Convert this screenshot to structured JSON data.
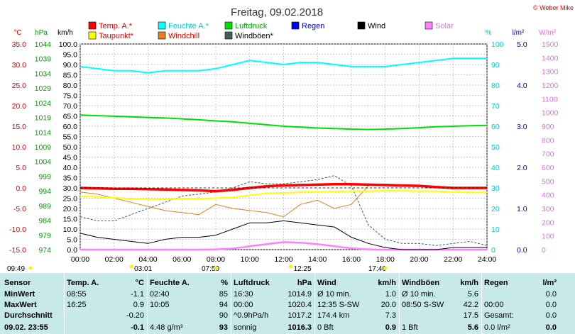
{
  "title": "Freitag, 09.02.2018",
  "copyright": "© Weber Mike",
  "colors": {
    "temp": "#ff0000",
    "feuchte": "#00ffff",
    "luftdruck": "#00e000",
    "regen": "#0000ff",
    "wind": "#000000",
    "solar": "#ff80ff",
    "taupunkt": "#ffff00",
    "windchill": "#e08020",
    "windboeen": "#406060",
    "summary_bg": "#c8e9e9"
  },
  "legend": [
    {
      "key": "temp",
      "label": "Temp. A.*"
    },
    {
      "key": "feuchte",
      "label": "Feuchte A.*"
    },
    {
      "key": "luftdruck",
      "label": "Luftdruck"
    },
    {
      "key": "regen",
      "label": "Regen"
    },
    {
      "key": "wind",
      "label": "Wind"
    },
    {
      "key": "solar",
      "label": "Solar"
    },
    {
      "key": "taupunkt",
      "label": "Taupunkt*"
    },
    {
      "key": "windchill",
      "label": "Windchill"
    },
    {
      "key": "windboeen",
      "label": "Windböen*"
    }
  ],
  "axes": {
    "temp": {
      "unit": "°C",
      "ticks": [
        "35.0",
        "30.0",
        "25.0",
        "20.0",
        "15.0",
        "10.0",
        "5.0",
        "0.0",
        "-5.0",
        "-10.0",
        "-15.0"
      ]
    },
    "pressure": {
      "unit": "hPa",
      "ticks": [
        "1044",
        "1039",
        "1034",
        "1029",
        "1024",
        "1019",
        "1014",
        "1009",
        "1004",
        "999",
        "994",
        "989",
        "984",
        "979",
        "974"
      ]
    },
    "wind": {
      "unit": "km/h",
      "ticks": [
        "100.0",
        "95.0",
        "90.0",
        "85.0",
        "80.0",
        "75.0",
        "70.0",
        "65.0",
        "60.0",
        "55.0",
        "50.0",
        "45.0",
        "40.0",
        "35.0",
        "30.0",
        "25.0",
        "20.0",
        "15.0",
        "10.0",
        "5.0",
        "0.0"
      ]
    },
    "humidity": {
      "unit": "%",
      "ticks": [
        "100",
        "90",
        "80",
        "70",
        "60",
        "50",
        "40",
        "30",
        "20",
        "10",
        "0"
      ]
    },
    "rain": {
      "unit": "l/m²",
      "ticks": [
        "5.0",
        "4.0",
        "3.0",
        "2.0",
        "1.0",
        "0.0"
      ]
    },
    "solar": {
      "unit": "W/m²",
      "ticks": [
        "1500",
        "1400",
        "1300",
        "1200",
        "1100",
        "1000",
        "900",
        "800",
        "700",
        "600",
        "500",
        "400",
        "300",
        "200",
        "100",
        "0"
      ]
    },
    "x": {
      "ticks": [
        "00:00",
        "02:00",
        "04:00",
        "06:00",
        "08:00",
        "10:00",
        "12:00",
        "14:00",
        "16:00",
        "18:00",
        "20:00",
        "22:00",
        "24:00"
      ]
    }
  },
  "events": {
    "upper": [
      "03:01",
      "07:50",
      "12:25",
      "17:40"
    ],
    "left": "09:49"
  },
  "chart_data": {
    "type": "line",
    "x_unit": "hours",
    "x": [
      0,
      1,
      2,
      3,
      4,
      5,
      6,
      7,
      8,
      9,
      10,
      11,
      12,
      13,
      14,
      15,
      16,
      17,
      18,
      19,
      20,
      21,
      22,
      23,
      24
    ],
    "xlim": [
      0,
      24
    ],
    "series": [
      {
        "name": "Temp. A.*",
        "axis": "°C",
        "values": [
          0.0,
          -0.1,
          -0.2,
          -0.2,
          -0.3,
          -0.4,
          -0.5,
          -0.6,
          -0.8,
          -0.5,
          0.0,
          0.4,
          0.6,
          0.7,
          0.8,
          0.9,
          0.9,
          0.8,
          0.7,
          0.6,
          0.5,
          0.2,
          0.0,
          0.0,
          0.0
        ]
      },
      {
        "name": "Taupunkt*",
        "axis": "°C",
        "values": [
          -2.0,
          -2.2,
          -2.4,
          -2.6,
          -2.8,
          -2.8,
          -2.6,
          -2.6,
          -2.5,
          -2.3,
          -1.8,
          -1.3,
          -1.2,
          -1.1,
          -1.0,
          -0.9,
          -0.8,
          -0.8,
          -0.7,
          -0.7,
          -0.8,
          -0.8,
          -1.0,
          -1.1,
          -1.1
        ]
      },
      {
        "name": "Windchill",
        "axis": "°C",
        "values": [
          -1.0,
          -1.5,
          -2.5,
          -3.5,
          -4.5,
          -5.5,
          -6.0,
          -6.5,
          -4.0,
          -5.0,
          -5.5,
          -6.0,
          -7.0,
          -4.0,
          -3.0,
          -5.0,
          -4.0,
          0.5,
          null,
          null,
          null,
          null,
          null,
          null,
          null
        ]
      },
      {
        "name": "Feuchte A.*",
        "axis": "%",
        "values": [
          89,
          88,
          87,
          87,
          86,
          87,
          87,
          87,
          88,
          90,
          92,
          91,
          90,
          91,
          91,
          90,
          89,
          89,
          89,
          90,
          91,
          92,
          93,
          93,
          93
        ]
      },
      {
        "name": "Luftdruck",
        "axis": "hPa",
        "values": [
          1019.8,
          1019.6,
          1019.4,
          1019.2,
          1019.0,
          1018.8,
          1018.5,
          1018.2,
          1017.8,
          1017.5,
          1017.0,
          1016.5,
          1016.0,
          1015.7,
          1015.4,
          1015.2,
          1015.0,
          1014.9,
          1015.0,
          1015.2,
          1015.5,
          1015.8,
          1016.0,
          1016.2,
          1016.3
        ]
      },
      {
        "name": "Wind",
        "axis": "km/h",
        "values": [
          8,
          6,
          5,
          4,
          3,
          5,
          6,
          6,
          7,
          10,
          13,
          13,
          14,
          13,
          12,
          11,
          6,
          3,
          1,
          0,
          0,
          0,
          1,
          1,
          1
        ]
      },
      {
        "name": "Windböen*",
        "axis": "km/h",
        "values": [
          16,
          14,
          14,
          17,
          20,
          23,
          26,
          27,
          28,
          30,
          33,
          32,
          32,
          33,
          34,
          36,
          31,
          12,
          5,
          3,
          3,
          2,
          3,
          4,
          2
        ]
      },
      {
        "name": "Solar",
        "axis": "W/m²",
        "values": [
          0,
          0,
          0,
          0,
          0,
          0,
          0,
          0,
          2,
          8,
          25,
          40,
          55,
          50,
          40,
          25,
          10,
          2,
          0,
          0,
          0,
          0,
          0,
          0,
          0
        ]
      },
      {
        "name": "Regen",
        "axis": "l/m²",
        "values": [
          0,
          0,
          0,
          0,
          0,
          0,
          0,
          0,
          0,
          0,
          0,
          0,
          0,
          0,
          0,
          0,
          0,
          0,
          0,
          0,
          0,
          0,
          0,
          0,
          0
        ]
      }
    ]
  },
  "summary": {
    "columns": [
      {
        "header": "Sensor",
        "rows": [
          "MinWert",
          "MaxWert",
          "Durchschnitt"
        ],
        "current": "09.02. 23:55"
      },
      {
        "header": "Temp. A.",
        "unit": "°C",
        "rows": [
          [
            "08:55",
            "-1.1"
          ],
          [
            "16:25",
            "0.9"
          ],
          [
            "",
            "-0.20"
          ]
        ],
        "current": "-0.1"
      },
      {
        "header": "Feuchte A.",
        "unit": "%",
        "rows": [
          [
            "02:40",
            "85"
          ],
          [
            "10:05",
            "94"
          ],
          [
            "",
            "90"
          ]
        ],
        "current_extra": "4.48 g/m³",
        "current": "93"
      },
      {
        "header": "Luftdruck",
        "unit": "hPa",
        "rows": [
          [
            "16:30",
            "1014.9"
          ],
          [
            "00:00",
            "1020.4"
          ],
          [
            "^0.9hPa/h",
            "1017.2"
          ]
        ],
        "current_extra": "sonnig",
        "current": "1016.3"
      },
      {
        "header": "Wind",
        "unit": "km/h",
        "rows": [
          [
            "Ø 10 min.",
            "1.0"
          ],
          [
            "12:35    S-SW",
            "20.0"
          ],
          [
            "174.4 km",
            "7.3"
          ]
        ],
        "current_extra": "0 Bft",
        "current": "0.9"
      },
      {
        "header": "Windböen",
        "unit": "km/h",
        "rows": [
          [
            "Ø 10 min.",
            "5.6"
          ],
          [
            "08:50    S-SW",
            "42.2"
          ],
          [
            "",
            "17.5"
          ]
        ],
        "current_extra": "1 Bft",
        "current": "5.6"
      },
      {
        "header": "Regen",
        "unit": "l/m²",
        "rows": [
          [
            "",
            "0.0"
          ],
          [
            "00:00",
            "0.0"
          ],
          [
            "Gesamt:",
            "0.0"
          ]
        ],
        "current_extra": "0.0 l/m²",
        "current": "0.0"
      }
    ]
  }
}
